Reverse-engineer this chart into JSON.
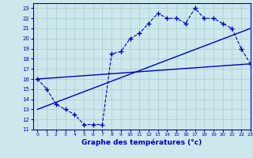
{
  "xlabel": "Graphe des températures (°c)",
  "xlim": [
    -0.5,
    23
  ],
  "ylim": [
    11,
    23.5
  ],
  "xticks": [
    0,
    1,
    2,
    3,
    4,
    5,
    6,
    7,
    8,
    9,
    10,
    11,
    12,
    13,
    14,
    15,
    16,
    17,
    18,
    19,
    20,
    21,
    22,
    23
  ],
  "yticks": [
    11,
    12,
    13,
    14,
    15,
    16,
    17,
    18,
    19,
    20,
    21,
    22,
    23
  ],
  "bg_color": "#cce8ec",
  "grid_color": "#aacccc",
  "line_color": "#0000bb",
  "curve_x": [
    0,
    1,
    2,
    3,
    4,
    5,
    6,
    7,
    8,
    9,
    10,
    11,
    12,
    13,
    14,
    15,
    16,
    17,
    18,
    19,
    20,
    21,
    22,
    23
  ],
  "curve_y": [
    16,
    15,
    13.5,
    13,
    12.5,
    11.5,
    11.5,
    11.5,
    18.5,
    18.7,
    20,
    20.5,
    21.5,
    22.5,
    22,
    22,
    21.5,
    23,
    22,
    22,
    21.5,
    21,
    19,
    17.5
  ],
  "trend1_x": [
    0,
    23
  ],
  "trend1_y": [
    16.0,
    17.5
  ],
  "trend2_x": [
    0,
    23
  ],
  "trend2_y": [
    13.0,
    21.0
  ]
}
